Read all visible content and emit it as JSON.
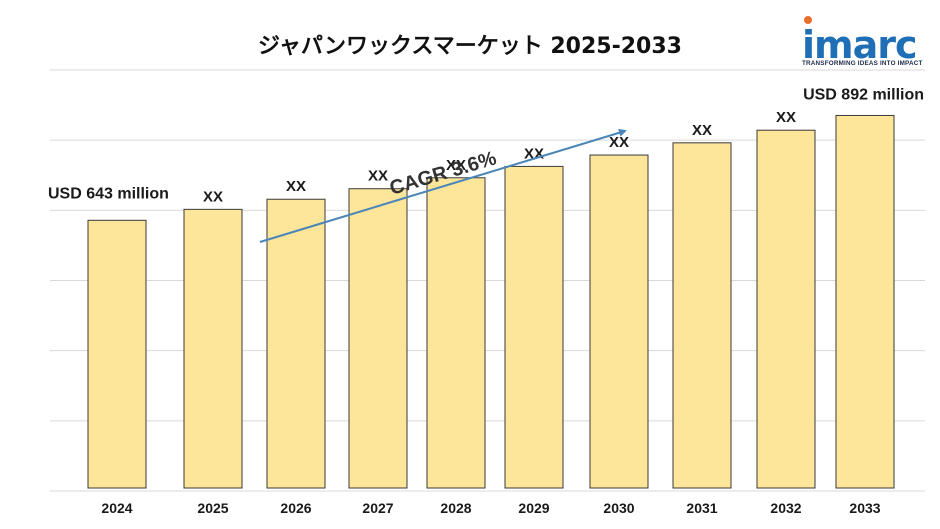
{
  "brand": {
    "logo_text": "imarc",
    "tagline": "TRANSFORMING IDEAS INTO IMPACT",
    "logo_color": "#1e6fb5",
    "accent_color": "#e8702a"
  },
  "chart_data": {
    "type": "bar",
    "title": "ジャパンワックスマーケット 2025-2033",
    "xlabel": "",
    "ylabel": "",
    "categories": [
      "2024",
      "2025",
      "2026",
      "2027",
      "2028",
      "2029",
      "2030",
      "2031",
      "2032",
      "2033"
    ],
    "values": [
      643,
      669,
      693,
      718,
      744,
      771,
      798,
      827,
      857,
      892
    ],
    "data_labels": [
      "USD 643 million",
      "XX",
      "XX",
      "XX",
      "XX",
      "XX",
      "XX",
      "XX",
      "XX",
      "USD 892 million"
    ],
    "ylim": [
      0,
      1000
    ],
    "grid": true,
    "y_ticks_visible": false,
    "bar_color": "#fde59a",
    "bar_border_color": "#3a3a3a",
    "annotation": {
      "text": "CAGR 3.6%",
      "arrow_color": "#4a86b8"
    }
  }
}
